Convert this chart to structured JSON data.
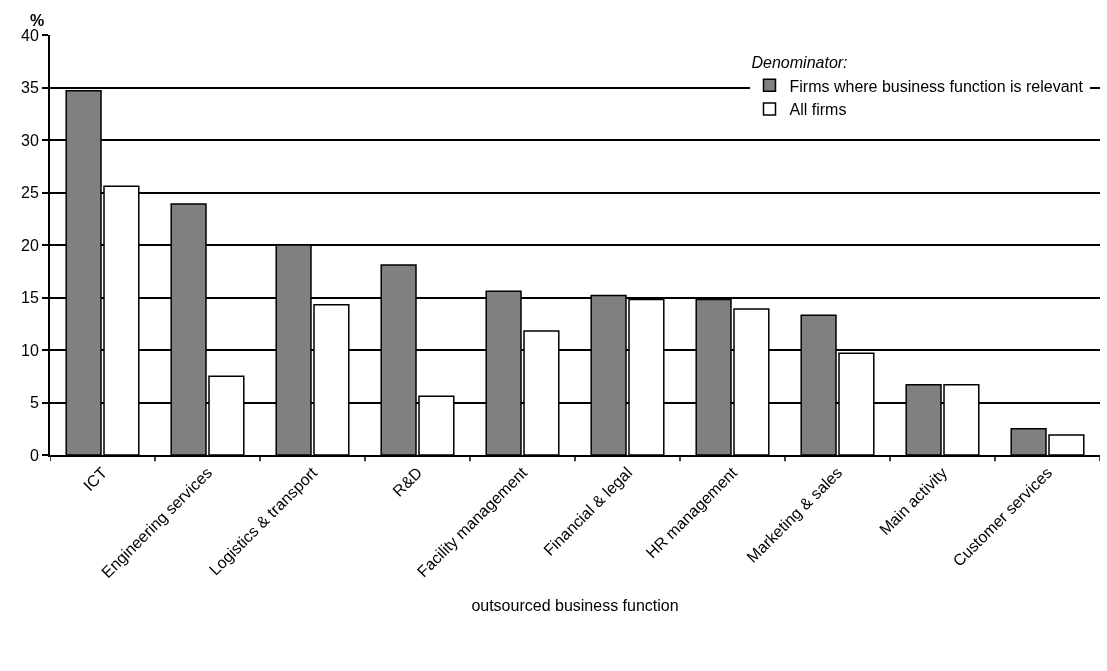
{
  "chart_data": {
    "type": "bar",
    "xlabel": "outsourced business function",
    "ylabel": "%",
    "legend_title": "Denominator:",
    "categories": [
      "ICT",
      "Engineering services",
      "Logistics & transport",
      "R&D",
      "Facility management",
      "Financial & legal",
      "HR management",
      "Marketing & sales",
      "Main activity",
      "Customer services"
    ],
    "series": [
      {
        "name": "Firms where business function is relevant",
        "color": "#808080",
        "values": [
          34.7,
          23.9,
          20.0,
          18.1,
          15.6,
          15.2,
          14.8,
          13.3,
          6.7,
          2.5
        ]
      },
      {
        "name": "All firms",
        "color": "#ffffff",
        "values": [
          25.6,
          7.5,
          14.3,
          5.6,
          11.8,
          14.8,
          13.9,
          9.7,
          6.7,
          1.9
        ]
      }
    ],
    "ylim": [
      0,
      40
    ],
    "yticks": [
      0,
      5,
      10,
      15,
      20,
      25,
      30,
      35,
      40
    ],
    "grid": "y",
    "legend": "top right"
  }
}
